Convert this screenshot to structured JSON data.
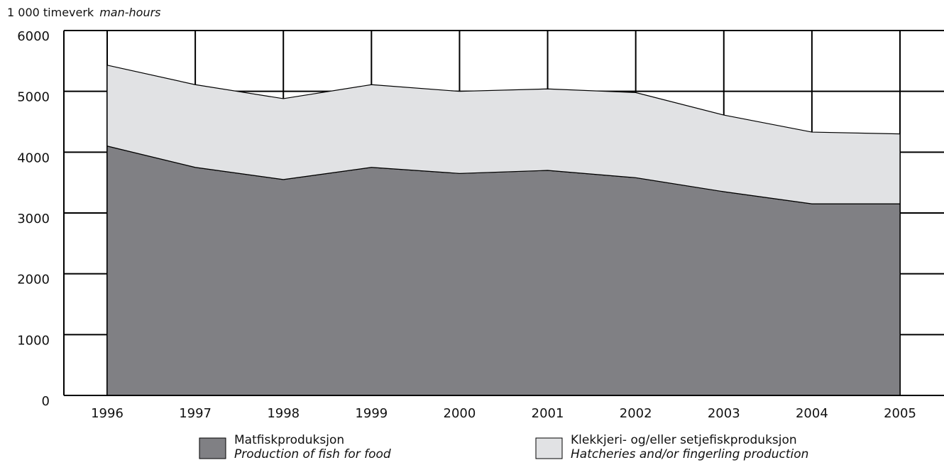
{
  "chart_data": {
    "type": "stacked_area",
    "y_label": "1 000 timeverk",
    "y_label_en": "man-hours",
    "categories": [
      "1996",
      "1997",
      "1998",
      "1999",
      "2000",
      "2001",
      "2002",
      "2003",
      "2004",
      "2005"
    ],
    "series": [
      {
        "name": "Matfiskproduksjon",
        "name_en": "Production of fish for food",
        "color": "#808084",
        "values": [
          4100,
          3750,
          3550,
          3750,
          3650,
          3700,
          3580,
          3350,
          3150,
          3150
        ]
      },
      {
        "name": "Klekkjeri- og/eller setjefiskproduksjon",
        "name_en": "Hatcheries and/or fingerling production",
        "color": "#e1e2e4",
        "values": [
          1330,
          1360,
          1330,
          1360,
          1350,
          1340,
          1400,
          1260,
          1180,
          1150
        ]
      }
    ],
    "ylim": [
      0,
      6000
    ],
    "yticks": [
      0,
      1000,
      2000,
      3000,
      4000,
      5000,
      6000
    ],
    "grid": true
  }
}
